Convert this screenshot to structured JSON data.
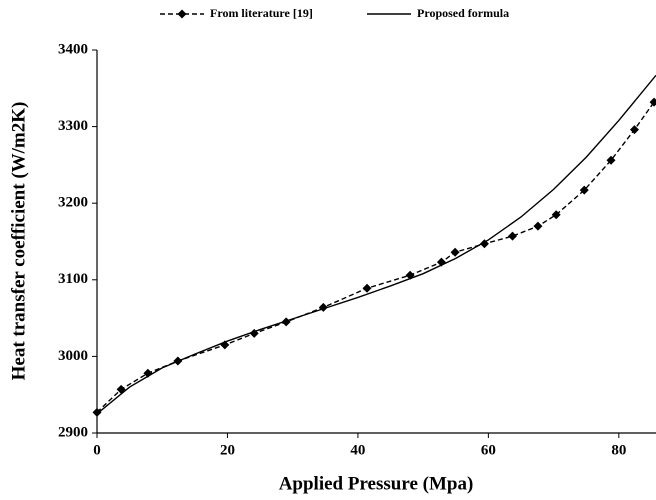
{
  "chart_data": {
    "type": "line",
    "x_label": "Applied Pressure (Mpa)",
    "y_label": "Heat transfer coefficient (W/m2K)",
    "xlim": [
      0,
      85.7
    ],
    "ylim": [
      2900,
      3400
    ],
    "xticks": [
      0,
      20,
      40,
      60,
      80
    ],
    "yticks": [
      2900,
      3000,
      3100,
      3200,
      3300,
      3400
    ],
    "grid": false,
    "legend": "top",
    "series": [
      {
        "name": "From literature [19]",
        "color": "#000000",
        "dashed": true,
        "marker": "diamond",
        "x": [
          0,
          3.7,
          7.8,
          12.4,
          19.6,
          24.1,
          29,
          34.7,
          41.4,
          48,
          52.8,
          54.9,
          59.4,
          63.7,
          67.6,
          70.4,
          74.7,
          78.8,
          82.4,
          85.4
        ],
        "values": [
          2927,
          2957,
          2978,
          2994,
          3015,
          3030,
          3045,
          3064,
          3089,
          3106,
          3123,
          3136,
          3147,
          3157,
          3170,
          3185,
          3217,
          3256,
          3296,
          3332
        ]
      },
      {
        "name": "Proposed formula",
        "color": "#000000",
        "dashed": false,
        "marker": null,
        "x": [
          0,
          5,
          10,
          15,
          20,
          25,
          30,
          35,
          40,
          45,
          50,
          55,
          60,
          65,
          70,
          75,
          80,
          85.7
        ],
        "values": [
          2925,
          2960,
          2985,
          3003,
          3020,
          3035,
          3049,
          3063,
          3077,
          3092,
          3108,
          3128,
          3152,
          3182,
          3218,
          3260,
          3308,
          3367
        ]
      }
    ]
  }
}
